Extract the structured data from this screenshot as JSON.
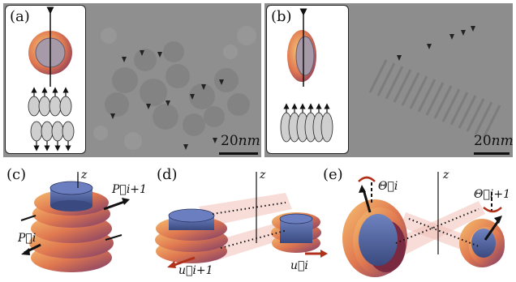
{
  "panels": {
    "a": {
      "label": "(a)",
      "scale_value": "20",
      "scale_unit": "nm"
    },
    "b": {
      "label": "(b)",
      "scale_value": "20",
      "scale_unit": "nm"
    },
    "c": {
      "label": "(c)",
      "axis": "z",
      "vec_p_next": "P⃗i+1",
      "vec_p": "P⃗i"
    },
    "d": {
      "label": "(d)",
      "axis": "z",
      "vec_u_next": "u⃗i+1",
      "vec_u": "u⃗i"
    },
    "e": {
      "label": "(e)",
      "axis": "z",
      "theta": "Θ⃗i",
      "theta_next": "Θ⃗i+1"
    }
  },
  "colors": {
    "ring_outer": "#e07850",
    "ring_inner": "#f0b060",
    "disc": "#5a6ea8",
    "arrow_red": "#b0301a",
    "micrograph": "#8f8f8f"
  }
}
